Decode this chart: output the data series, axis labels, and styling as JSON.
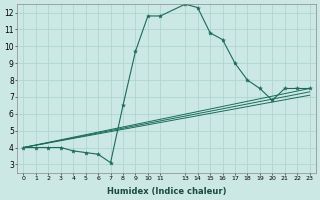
{
  "xlabel": "Humidex (Indice chaleur)",
  "bg_color": "#cce8e4",
  "line_color": "#1a6b5a",
  "grid_color": "#a8d5cc",
  "xlim": [
    -0.5,
    23.5
  ],
  "ylim": [
    2.5,
    12.5
  ],
  "xtick_vals": [
    0,
    1,
    2,
    3,
    4,
    5,
    6,
    7,
    8,
    9,
    10,
    11,
    13,
    14,
    15,
    16,
    17,
    18,
    19,
    20,
    21,
    22,
    23
  ],
  "ytick_vals": [
    3,
    4,
    5,
    6,
    7,
    8,
    9,
    10,
    11,
    12
  ],
  "series": [
    {
      "x": [
        0,
        1,
        2,
        3,
        4,
        5,
        6,
        7,
        8,
        9,
        10,
        11,
        13,
        14,
        15,
        16,
        17,
        18,
        19,
        20,
        21,
        22,
        23
      ],
      "y": [
        4.0,
        4.0,
        4.0,
        4.0,
        3.8,
        3.7,
        3.6,
        3.1,
        6.5,
        9.7,
        11.8,
        11.8,
        12.5,
        12.3,
        10.8,
        10.4,
        9.0,
        8.0,
        7.5,
        6.8,
        7.5,
        7.5,
        7.5
      ],
      "with_markers": true
    },
    {
      "x": [
        0,
        23
      ],
      "y": [
        4.0,
        7.5
      ],
      "with_markers": false
    },
    {
      "x": [
        0,
        23
      ],
      "y": [
        4.0,
        7.3
      ],
      "with_markers": false
    },
    {
      "x": [
        0,
        23
      ],
      "y": [
        4.0,
        7.1
      ],
      "with_markers": false
    }
  ]
}
